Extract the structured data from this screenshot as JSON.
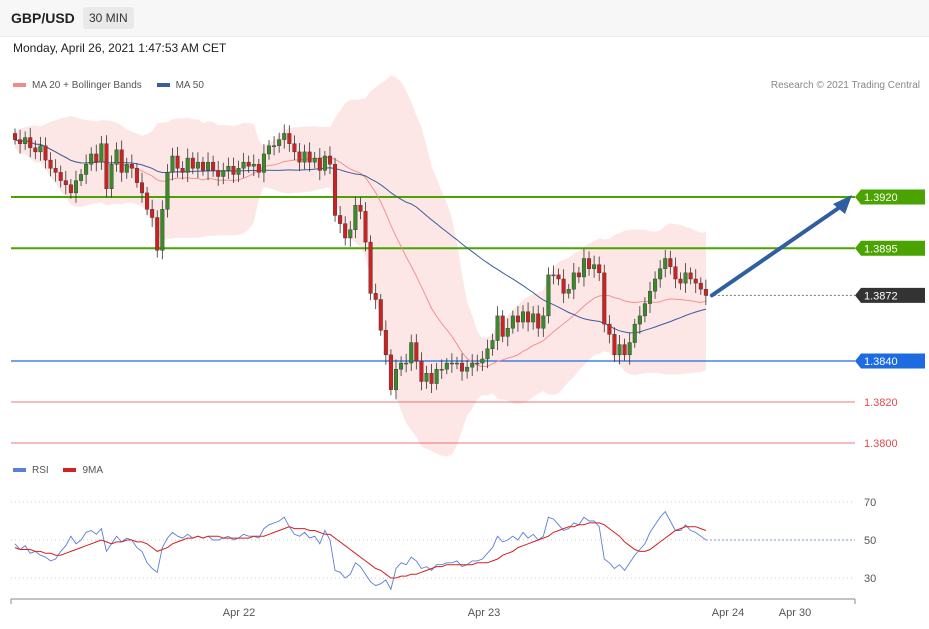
{
  "header": {
    "symbol": "GBP/USD",
    "timeframe": "30 MIN",
    "datetime": "Monday, April 26, 2021 1:47:53 AM CET"
  },
  "legend": {
    "main": [
      {
        "label": "MA 20 + Bollinger Bands",
        "color": "#f28a8a"
      },
      {
        "label": "MA 50",
        "color": "#3a5d9c"
      }
    ],
    "rsi": [
      {
        "label": "RSI",
        "color": "#5b7fd6"
      },
      {
        "label": "9MA",
        "color": "#d42020"
      }
    ]
  },
  "credit": "Research © 2021 Trading Central",
  "colors": {
    "bull": "#3a8a2a",
    "bear": "#cc2222",
    "resistance": "#4aa300",
    "support": "#1e6ae0",
    "minor": "#e24b4b",
    "arrow": "#2f5f9f",
    "last": "#333333"
  },
  "chart_data": {
    "type": "candlestick",
    "ylim": [
      1.3785,
      1.3965
    ],
    "levels": [
      {
        "value": 1.392,
        "label": "1.3920",
        "kind": "resistance"
      },
      {
        "value": 1.3895,
        "label": "1.3895",
        "kind": "resistance"
      },
      {
        "value": 1.3872,
        "label": "1.3872",
        "kind": "last"
      },
      {
        "value": 1.384,
        "label": "1.3840",
        "kind": "support"
      },
      {
        "value": 1.382,
        "label": "1.3820",
        "kind": "minor"
      },
      {
        "value": 1.38,
        "label": "1.3800",
        "kind": "minor"
      }
    ],
    "x_ticks": [
      "Apr 22",
      "Apr 23",
      "Apr 24",
      "Apr 30"
    ],
    "close": [
      1.3948,
      1.3946,
      1.3949,
      1.3944,
      1.3942,
      1.3945,
      1.3938,
      1.3934,
      1.3932,
      1.3928,
      1.3926,
      1.3922,
      1.3928,
      1.3931,
      1.3936,
      1.3941,
      1.3937,
      1.3946,
      1.3924,
      1.3936,
      1.3943,
      1.3932,
      1.3936,
      1.3934,
      1.3927,
      1.3922,
      1.3914,
      1.391,
      1.3894,
      1.3914,
      1.3932,
      1.394,
      1.3934,
      1.3932,
      1.3939,
      1.3934,
      1.3937,
      1.3933,
      1.3937,
      1.3933,
      1.393,
      1.3933,
      1.3935,
      1.3931,
      1.3934,
      1.3937,
      1.3935,
      1.3936,
      1.3932,
      1.3941,
      1.3945,
      1.3945,
      1.3948,
      1.3951,
      1.3946,
      1.3942,
      1.3937,
      1.3942,
      1.3937,
      1.3939,
      1.3933,
      1.394,
      1.3936,
      1.3911,
      1.3907,
      1.39,
      1.3904,
      1.3916,
      1.3913,
      1.3898,
      1.3873,
      1.387,
      1.3855,
      1.3843,
      1.3826,
      1.3836,
      1.3839,
      1.3839,
      1.3849,
      1.384,
      1.383,
      1.3834,
      1.3829,
      1.3836,
      1.3836,
      1.3839,
      1.3839,
      1.3839,
      1.3835,
      1.3837,
      1.3839,
      1.3839,
      1.3841,
      1.3846,
      1.385,
      1.3862,
      1.3852,
      1.3856,
      1.3862,
      1.3859,
      1.3864,
      1.3859,
      1.3863,
      1.3856,
      1.3862,
      1.3882,
      1.3882,
      1.388,
      1.3873,
      1.3875,
      1.3883,
      1.3881,
      1.389,
      1.3885,
      1.3887,
      1.3883,
      1.3858,
      1.3853,
      1.3843,
      1.3848,
      1.3843,
      1.3849,
      1.3858,
      1.3862,
      1.3868,
      1.3874,
      1.388,
      1.3885,
      1.389,
      1.3886,
      1.388,
      1.3878,
      1.3883,
      1.388,
      1.3878,
      1.3875,
      1.3872
    ],
    "rsi": [
      48,
      45,
      47,
      43,
      44,
      42,
      41,
      39,
      40,
      44,
      47,
      52,
      48,
      50,
      54,
      55,
      53,
      56,
      44,
      48,
      52,
      49,
      51,
      50,
      46,
      44,
      38,
      35,
      33,
      46,
      51,
      54,
      52,
      51,
      53,
      51,
      52,
      51,
      52,
      50,
      50,
      51,
      52,
      50,
      51,
      53,
      52,
      52,
      51,
      56,
      58,
      59,
      60,
      62,
      57,
      53,
      52,
      54,
      51,
      52,
      48,
      55,
      50,
      34,
      33,
      30,
      32,
      38,
      36,
      32,
      28,
      26,
      27,
      29,
      24,
      35,
      38,
      37,
      41,
      39,
      35,
      36,
      34,
      37,
      37,
      38,
      38,
      39,
      36,
      37,
      39,
      39,
      40,
      43,
      46,
      52,
      49,
      50,
      52,
      50,
      54,
      51,
      53,
      50,
      52,
      62,
      61,
      58,
      55,
      56,
      59,
      58,
      62,
      60,
      60,
      57,
      40,
      38,
      35,
      37,
      34,
      38,
      42,
      45,
      48,
      54,
      58,
      62,
      65,
      60,
      55,
      55,
      58,
      55,
      54,
      52,
      50
    ],
    "rsi_ma": [
      46,
      45,
      45,
      45,
      44,
      44,
      43,
      43,
      42,
      42,
      43,
      44,
      45,
      46,
      47,
      48,
      49,
      50,
      49,
      48,
      49,
      49,
      50,
      50,
      49,
      49,
      48,
      46,
      44,
      45,
      46,
      48,
      49,
      50,
      51,
      51,
      52,
      51,
      52,
      52,
      52,
      51,
      51,
      51,
      51,
      51,
      51,
      52,
      52,
      52,
      53,
      54,
      55,
      56,
      57,
      56,
      56,
      56,
      55,
      55,
      54,
      53,
      53,
      51,
      49,
      47,
      45,
      43,
      41,
      39,
      37,
      35,
      34,
      32,
      30,
      30,
      31,
      31,
      32,
      32,
      33,
      34,
      35,
      36,
      36,
      37,
      37,
      37,
      37,
      37,
      37,
      38,
      38,
      38,
      39,
      40,
      42,
      43,
      44,
      46,
      47,
      48,
      49,
      50,
      51,
      52,
      54,
      55,
      56,
      57,
      57,
      58,
      58,
      59,
      59,
      59,
      58,
      56,
      54,
      52,
      49,
      47,
      45,
      44,
      44,
      45,
      47,
      49,
      51,
      53,
      55,
      56,
      57,
      57,
      57,
      56,
      55
    ],
    "rsi_levels": [
      70,
      50,
      30
    ],
    "rsi_ylim": [
      20,
      80
    ]
  }
}
